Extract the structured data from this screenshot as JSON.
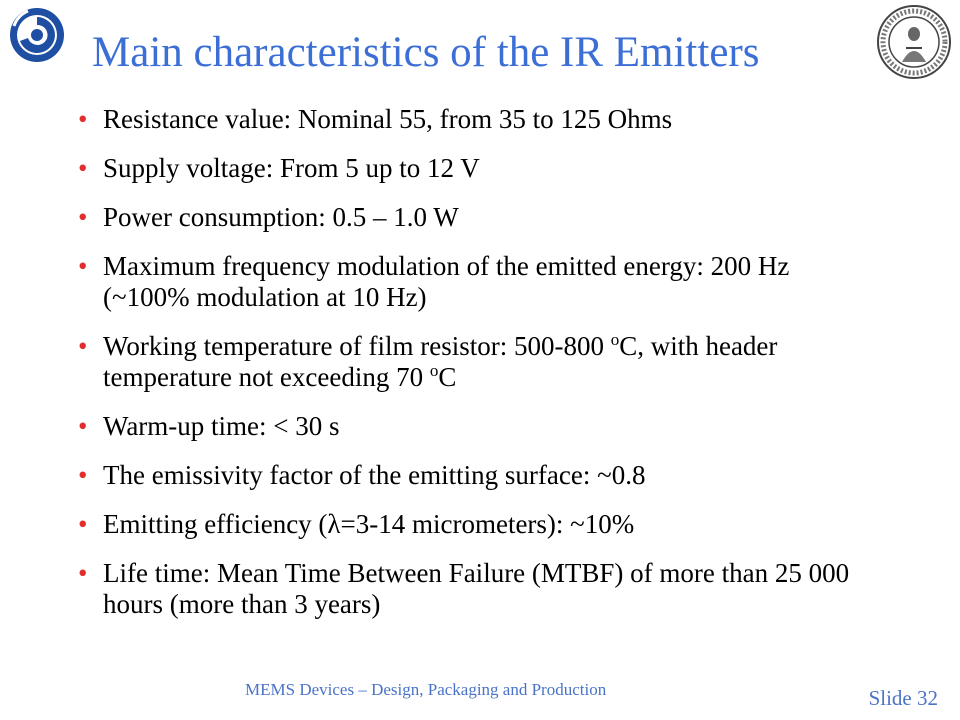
{
  "slide": {
    "title": "Main characteristics of the IR Emitters",
    "bullets": [
      {
        "parts": [
          {
            "text": "Resistance value: Nominal 55, from 35 to 125 Ohms"
          }
        ]
      },
      {
        "parts": [
          {
            "text": "Supply voltage: From 5 up to 12 V"
          }
        ]
      },
      {
        "parts": [
          {
            "text": "Power consumption: 0.5 – 1.0 W"
          }
        ]
      },
      {
        "parts": [
          {
            "text": "Maximum frequency modulation of the emitted energy: 200 Hz (~100% modulation at 10 Hz)"
          }
        ]
      },
      {
        "parts": [
          {
            "text": "Working temperature of film resistor: 500-800 "
          },
          {
            "text": "o",
            "sup": true
          },
          {
            "text": "C, with header temperature not exceeding 70 "
          },
          {
            "text": "o",
            "sup": true
          },
          {
            "text": "C"
          }
        ]
      },
      {
        "parts": [
          {
            "text": "Warm-up time: < 30 s"
          }
        ]
      },
      {
        "parts": [
          {
            "text": "The emissivity factor of the emitting surface: ~0.8"
          }
        ]
      },
      {
        "parts": [
          {
            "text": "Emitting efficiency (λ=3-14 micrometers): ~10%"
          }
        ]
      },
      {
        "parts": [
          {
            "text": "Life time: Mean Time Between Failure (MTBF) of more than 25 000 hours (more than 3 years)"
          }
        ]
      }
    ],
    "footer": "MEMS Devices – Design, Packaging and Production",
    "slide_number": "Slide 32",
    "bullet_glyph": "•",
    "logo_left_icon": "swirl-logo-icon",
    "logo_right_icon": "university-seal-icon",
    "logo_right_text": "UNIVERSITAS OSLOENSIS MDCCCXI",
    "colors": {
      "title": "#3c6fd6",
      "bullet": "#e22d2d",
      "footer": "#4a73c8"
    }
  }
}
